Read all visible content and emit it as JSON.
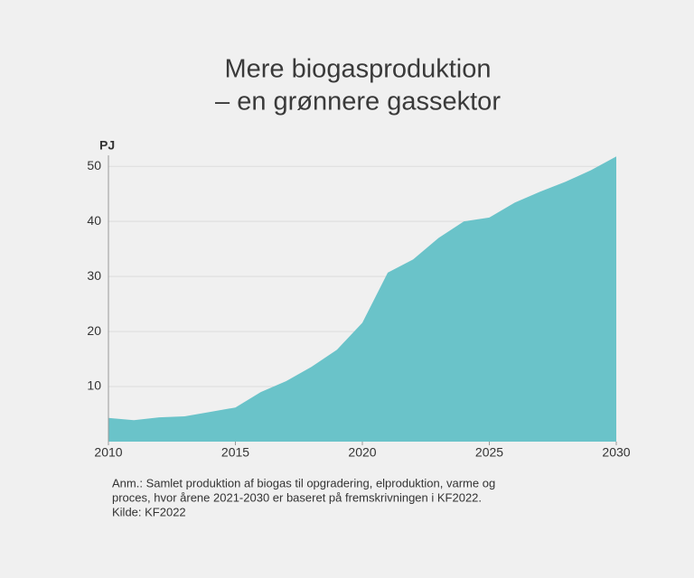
{
  "chart_data": {
    "type": "area",
    "title": [
      "Mere biogasproduktion",
      "– en grønnere gassektor"
    ],
    "y_label": "PJ",
    "x": [
      2010,
      2011,
      2012,
      2013,
      2014,
      2015,
      2016,
      2017,
      2018,
      2019,
      2020,
      2021,
      2022,
      2023,
      2024,
      2025,
      2026,
      2027,
      2028,
      2029,
      2030
    ],
    "values": [
      4.3,
      3.9,
      4.4,
      4.6,
      5.4,
      6.2,
      9.0,
      11.0,
      13.6,
      16.7,
      21.6,
      30.7,
      33.1,
      37.0,
      40.0,
      40.7,
      43.4,
      45.4,
      47.2,
      49.3,
      51.8
    ],
    "color": "#6ac3c9",
    "xlim": [
      2010,
      2030
    ],
    "xticks": [
      2010,
      2015,
      2020,
      2025,
      2030
    ],
    "ylim": [
      0,
      52
    ],
    "yticks": [
      10,
      20,
      30,
      40,
      50
    ],
    "grid": true,
    "note": [
      "Anm.: Samlet produktion af biogas til opgradering, elproduktion, varme og",
      "proces, hvor årene 2021-2030 er baseret på fremskrivningen i KF2022.",
      "Kilde: KF2022"
    ]
  }
}
